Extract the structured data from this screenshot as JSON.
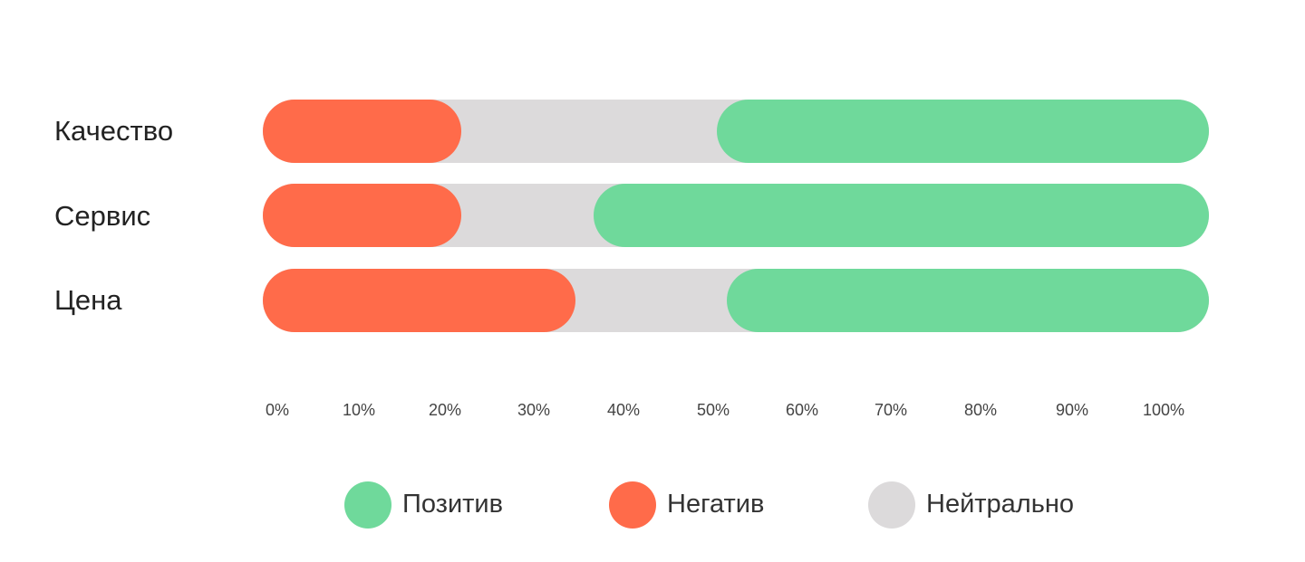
{
  "chart_data": {
    "type": "bar",
    "orientation": "horizontal",
    "stacked": true,
    "categories": [
      "Качество",
      "Сервис",
      "Цена"
    ],
    "series": [
      {
        "name": "Негатив",
        "color": "#ff6b4a",
        "values": [
          21,
          21,
          33
        ]
      },
      {
        "name": "Нейтрально",
        "color": "#dcdadb",
        "values": [
          27,
          14,
          16
        ]
      },
      {
        "name": "Позитив",
        "color": "#6fd99b",
        "values": [
          52,
          65,
          51
        ]
      }
    ],
    "xlim": [
      0,
      100
    ],
    "x_ticks": [
      "0%",
      "10%",
      "20%",
      "30%",
      "40%",
      "50%",
      "60%",
      "70%",
      "80%",
      "90%",
      "100%"
    ],
    "grid": false,
    "legend_position": "bottom"
  },
  "legend": [
    {
      "name": "Позитив",
      "color": "#6fd99b"
    },
    {
      "name": "Негатив",
      "color": "#ff6b4a"
    },
    {
      "name": "Нейтрально",
      "color": "#dcdadb"
    }
  ]
}
